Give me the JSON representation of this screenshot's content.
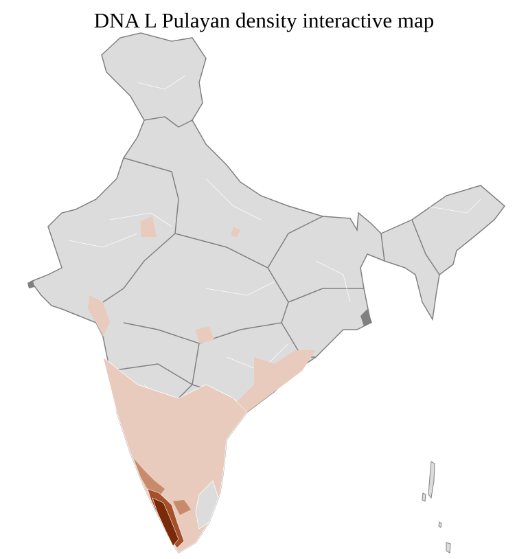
{
  "title": "DNA L Pulayan density interactive map",
  "colors": {
    "no_data": "#dcdcdc",
    "state_border": "#808080",
    "district_border": "#ffffff",
    "low": "#e8cbbd",
    "medium": "#c98a6c",
    "high": "#a5502a",
    "highest": "#7a2a08"
  }
}
